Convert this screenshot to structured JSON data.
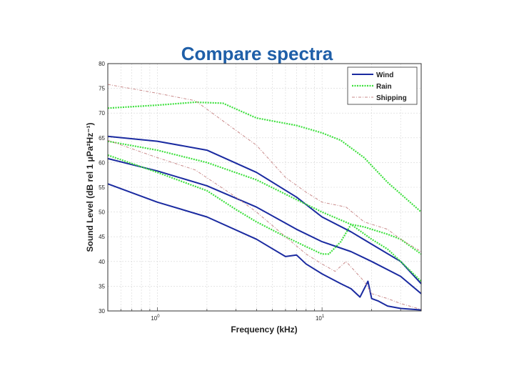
{
  "slide": {
    "title": "Compare spectra"
  },
  "chart_data": {
    "type": "line",
    "xlabel": "Frequency (kHz)",
    "ylabel": "Sound Level (dB rel 1 μPa²Hz⁻¹)",
    "x_scale": "log",
    "xlim": [
      0.5,
      40
    ],
    "ylim": [
      30,
      80
    ],
    "y_ticks": [
      30,
      35,
      40,
      45,
      50,
      55,
      60,
      65,
      70,
      75,
      80
    ],
    "x_ticks": [
      {
        "value": 1,
        "base": "10",
        "exp": "0"
      },
      {
        "value": 10,
        "base": "10",
        "exp": "1"
      }
    ],
    "grid": true,
    "legend_position": "top-right",
    "legend": [
      {
        "label": "Wind",
        "color": "#1a2aa0",
        "dash": "solid"
      },
      {
        "label": "Rain",
        "color": "#3ee03e",
        "dash": "dotted"
      },
      {
        "label": "Shipping",
        "color": "#c98a8a",
        "dash": "dashdot"
      }
    ],
    "series": [
      {
        "group": "Wind",
        "x": [
          0.5,
          1,
          2,
          4,
          7,
          10,
          15,
          20,
          30,
          40
        ],
        "y": [
          65.3,
          64.3,
          62.5,
          58.0,
          53.0,
          49.0,
          46.0,
          43.5,
          40.0,
          35.5
        ]
      },
      {
        "group": "Wind",
        "x": [
          0.5,
          1,
          2,
          4,
          7,
          10,
          15,
          20,
          30,
          40
        ],
        "y": [
          60.8,
          58.3,
          55.3,
          51.0,
          46.5,
          44.0,
          42.0,
          40.0,
          37.0,
          33.5
        ]
      },
      {
        "group": "Wind",
        "x": [
          0.5,
          1,
          2,
          4,
          6,
          7,
          8,
          10,
          13,
          15,
          17,
          19,
          20,
          22,
          25,
          30,
          40
        ],
        "y": [
          55.7,
          52.0,
          49.0,
          44.5,
          41.0,
          41.3,
          39.5,
          37.5,
          35.5,
          34.5,
          32.8,
          36.0,
          32.5,
          32.0,
          31.0,
          30.5,
          30.2
        ]
      },
      {
        "group": "Rain",
        "x": [
          0.5,
          1,
          1.7,
          2.5,
          4,
          7,
          10,
          13,
          18,
          25,
          40
        ],
        "y": [
          71.0,
          71.6,
          72.2,
          72.0,
          69.0,
          67.5,
          66.0,
          64.5,
          61.0,
          56.0,
          50.0
        ]
      },
      {
        "group": "Rain",
        "x": [
          0.5,
          1,
          2,
          4,
          7,
          10,
          15,
          20,
          25,
          30,
          40
        ],
        "y": [
          64.3,
          62.5,
          60.0,
          56.5,
          52.5,
          50.0,
          47.5,
          44.5,
          42.5,
          40.0,
          36.0
        ]
      },
      {
        "group": "Rain",
        "x": [
          0.5,
          1,
          2,
          3,
          4,
          6,
          8,
          10,
          11,
          13,
          15,
          18,
          20,
          25,
          30,
          40
        ],
        "y": [
          61.5,
          58.0,
          54.3,
          50.5,
          48.0,
          45.0,
          43.0,
          41.5,
          41.5,
          44.0,
          47.5,
          47.0,
          46.5,
          45.5,
          44.5,
          41.5
        ]
      },
      {
        "group": "Shipping",
        "x": [
          0.5,
          1,
          1.7,
          3,
          4,
          6,
          8,
          10,
          14,
          18,
          25,
          30,
          40
        ],
        "y": [
          75.8,
          74.0,
          72.5,
          66.5,
          63.5,
          57.0,
          54.0,
          52.0,
          51.0,
          48.0,
          46.5,
          44.5,
          42.0
        ]
      },
      {
        "group": "Shipping",
        "x": [
          0.5,
          1,
          1.7,
          3,
          4,
          6,
          8,
          10,
          12,
          14,
          18,
          20,
          25,
          30,
          40
        ],
        "y": [
          64.5,
          61.0,
          58.5,
          53.0,
          50.0,
          45.0,
          41.5,
          39.5,
          38.0,
          40.0,
          36.0,
          33.5,
          32.5,
          31.5,
          30.3
        ]
      }
    ]
  }
}
